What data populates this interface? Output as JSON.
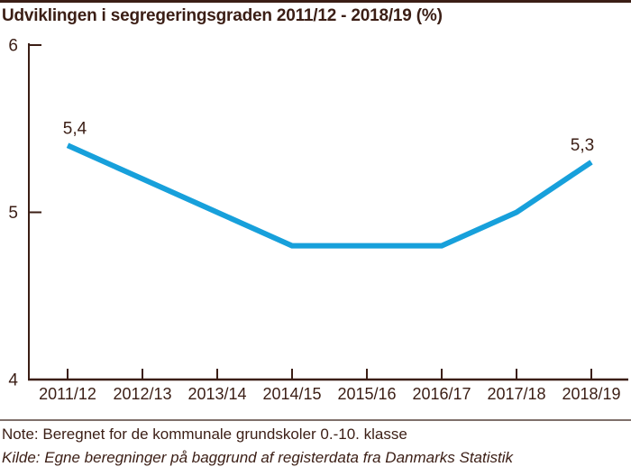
{
  "title": "Udviklingen i segregeringsgraden 2011/12 - 2018/19 (%)",
  "footer": {
    "note": "Note: Beregnet for de kommunale grundskoler 0.-10. klasse",
    "source": "Kilde: Egne beregninger på baggrund af registerdata fra Danmarks Statistik"
  },
  "colors": {
    "line": "#17A0DB",
    "text_dark": "#3B1E15",
    "axis": "#3B1E15",
    "divider": "#7F706B"
  },
  "chart_data": {
    "type": "line",
    "title": "Udviklingen i segregeringsgraden 2011/12 - 2018/19 (%)",
    "categories": [
      "2011/12",
      "2012/13",
      "2013/14",
      "2014/15",
      "2015/16",
      "2016/17",
      "2017/18",
      "2018/19"
    ],
    "values": [
      5.4,
      5.2,
      5.0,
      4.8,
      4.8,
      4.8,
      5.0,
      5.3
    ],
    "ylim": [
      4,
      6
    ],
    "yticks": [
      4,
      5,
      6
    ],
    "grid": false,
    "legend": false,
    "xlabel": "",
    "ylabel": "",
    "point_labels": [
      {
        "index": 0,
        "text": "5,4"
      },
      {
        "index": 7,
        "text": "5,3"
      }
    ]
  }
}
